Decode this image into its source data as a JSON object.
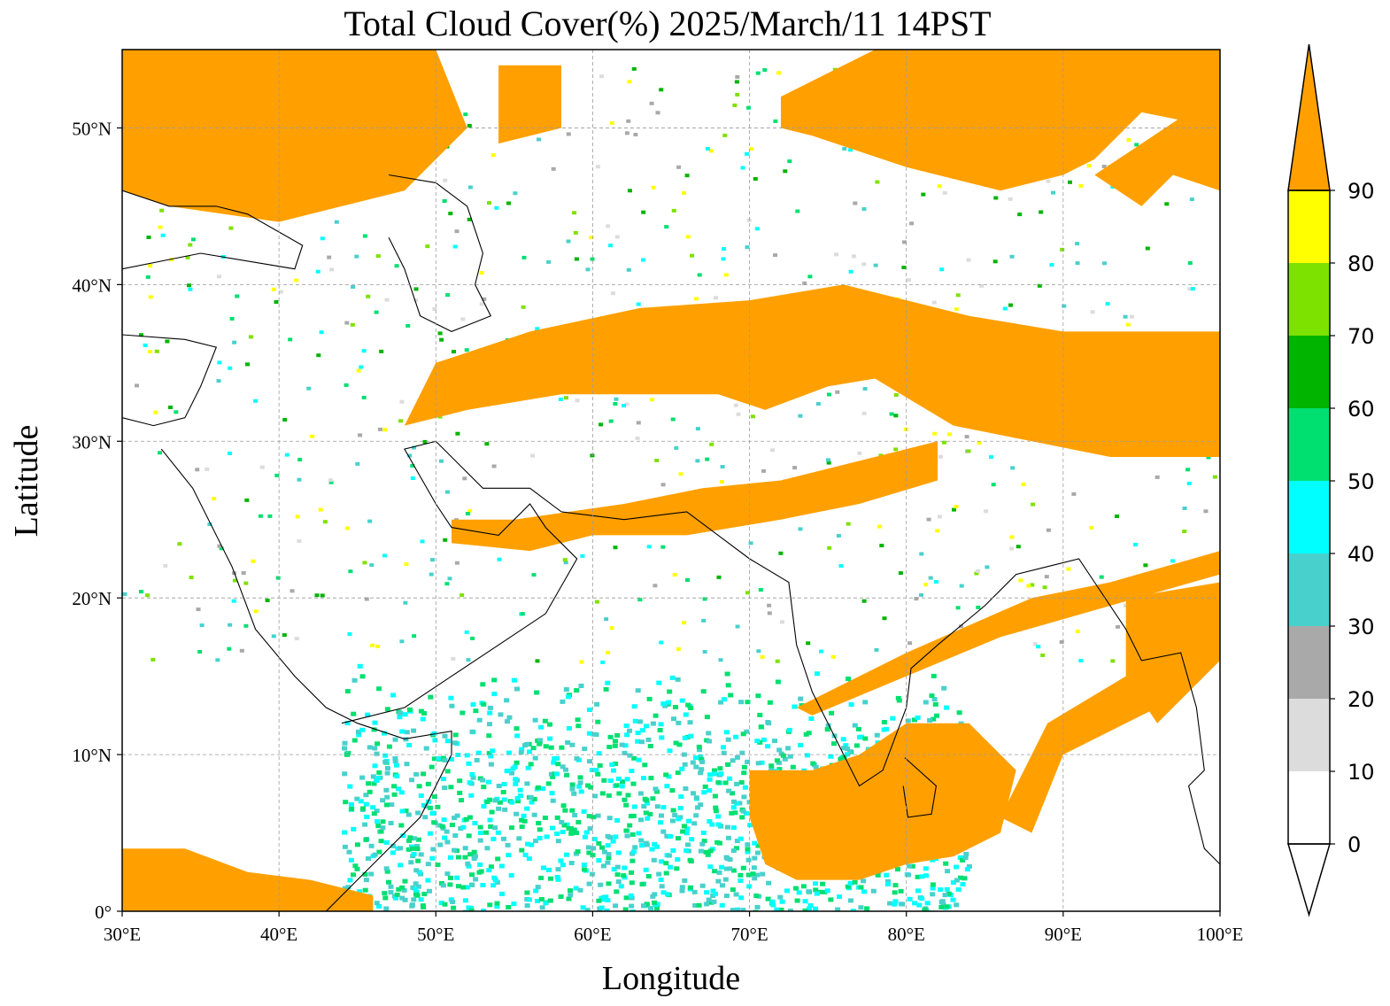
{
  "figure": {
    "title": "Total Cloud Cover(%)  2025/March/11 14PST",
    "xlabel": "Longitude",
    "ylabel": "Latitude"
  },
  "axes": {
    "lon_range": [
      30,
      100
    ],
    "lat_range": [
      0,
      55
    ],
    "x_ticks": [
      {
        "value": 30,
        "label": "30°E"
      },
      {
        "value": 40,
        "label": "40°E"
      },
      {
        "value": 50,
        "label": "50°E"
      },
      {
        "value": 60,
        "label": "60°E"
      },
      {
        "value": 70,
        "label": "70°E"
      },
      {
        "value": 80,
        "label": "80°E"
      },
      {
        "value": 90,
        "label": "90°E"
      },
      {
        "value": 100,
        "label": "100°E"
      }
    ],
    "y_ticks": [
      {
        "value": 0,
        "label": "0°"
      },
      {
        "value": 10,
        "label": "10°N"
      },
      {
        "value": 20,
        "label": "20°N"
      },
      {
        "value": 30,
        "label": "30°N"
      },
      {
        "value": 40,
        "label": "40°N"
      },
      {
        "value": 50,
        "label": "50°N"
      }
    ],
    "gridlines": true
  },
  "colorbar": {
    "ticks": [
      "0",
      "10",
      "20",
      "30",
      "40",
      "50",
      "60",
      "70",
      "80",
      "90"
    ],
    "bins": [
      {
        "range": [
          0,
          10
        ],
        "color": "#ffffff"
      },
      {
        "range": [
          10,
          20
        ],
        "color": "#dcdcdc"
      },
      {
        "range": [
          20,
          30
        ],
        "color": "#a9a9a9"
      },
      {
        "range": [
          30,
          40
        ],
        "color": "#48d1cc"
      },
      {
        "range": [
          40,
          50
        ],
        "color": "#00ffff"
      },
      {
        "range": [
          50,
          60
        ],
        "color": "#00e070"
      },
      {
        "range": [
          60,
          70
        ],
        "color": "#00b400"
      },
      {
        "range": [
          70,
          80
        ],
        "color": "#7ee200"
      },
      {
        "range": [
          80,
          90
        ],
        "color": "#ffff00"
      },
      {
        "range": [
          90,
          100
        ],
        "color": "#ffa000"
      }
    ],
    "extend": "both"
  },
  "colors": {
    "orange": "#ffa000",
    "yellow": "#ffff00",
    "lightgreen": "#7ee200",
    "green": "#00b400",
    "seagreen": "#00e070",
    "cyan": "#00ffff",
    "teal": "#48d1cc",
    "gray": "#a9a9a9",
    "lightgray": "#dcdcdc",
    "white": "#ffffff"
  },
  "chart_data": {
    "type": "heatmap",
    "variable": "Total Cloud Cover(%)",
    "region": {
      "lon": [
        30,
        100
      ],
      "lat": [
        0,
        55
      ]
    },
    "cloud_regions": [
      {
        "name": "north-band-west",
        "cover": 95,
        "polygon": [
          [
            30,
            55
          ],
          [
            50,
            55
          ],
          [
            52,
            50
          ],
          [
            48,
            46
          ],
          [
            40,
            44
          ],
          [
            33,
            45
          ],
          [
            30,
            46
          ]
        ]
      },
      {
        "name": "north-band-kazakh",
        "cover": 95,
        "polygon": [
          [
            54,
            54
          ],
          [
            58,
            54
          ],
          [
            58,
            50
          ],
          [
            54,
            49
          ]
        ]
      },
      {
        "name": "north-band-east",
        "cover": 95,
        "polygon": [
          [
            78,
            55
          ],
          [
            100,
            55
          ],
          [
            100,
            50
          ],
          [
            95,
            51
          ],
          [
            92,
            48
          ],
          [
            90,
            47
          ],
          [
            86,
            46
          ],
          [
            80,
            47.5
          ],
          [
            74,
            49.5
          ],
          [
            72,
            50
          ],
          [
            72,
            52
          ]
        ]
      },
      {
        "name": "northeast-arm",
        "cover": 95,
        "polygon": [
          [
            98,
            51
          ],
          [
            100,
            51
          ],
          [
            100,
            46
          ],
          [
            97,
            47
          ],
          [
            95,
            45
          ],
          [
            92,
            47
          ]
        ]
      },
      {
        "name": "afghan-tibet-band",
        "cover": 95,
        "polygon": [
          [
            50,
            35
          ],
          [
            56,
            37
          ],
          [
            63,
            38.5
          ],
          [
            70,
            39
          ],
          [
            76,
            40
          ],
          [
            84,
            38
          ],
          [
            90,
            37
          ],
          [
            100,
            37
          ],
          [
            100,
            29
          ],
          [
            93,
            29
          ],
          [
            88,
            30
          ],
          [
            83,
            31
          ],
          [
            78,
            34
          ],
          [
            75,
            33.5
          ],
          [
            71,
            32
          ],
          [
            68,
            33
          ],
          [
            64,
            33
          ],
          [
            58,
            33
          ],
          [
            52,
            32
          ],
          [
            48,
            31
          ]
        ]
      },
      {
        "name": "iran-pakistan-band",
        "cover": 95,
        "polygon": [
          [
            51,
            25
          ],
          [
            55,
            25
          ],
          [
            62,
            26
          ],
          [
            67,
            27
          ],
          [
            72,
            27.5
          ],
          [
            78,
            29
          ],
          [
            82,
            30
          ],
          [
            82,
            27.5
          ],
          [
            77,
            26
          ],
          [
            72,
            25
          ],
          [
            66,
            24
          ],
          [
            60,
            24
          ],
          [
            56,
            23
          ],
          [
            51,
            23.5
          ]
        ]
      },
      {
        "name": "india-srilanka-blob",
        "cover": 95,
        "polygon": [
          [
            70,
            9
          ],
          [
            74,
            9
          ],
          [
            77,
            10
          ],
          [
            80,
            12
          ],
          [
            84,
            12
          ],
          [
            87,
            9
          ],
          [
            86,
            5
          ],
          [
            83,
            3.5
          ],
          [
            80,
            3
          ],
          [
            77,
            2
          ],
          [
            73,
            2
          ],
          [
            71,
            3
          ],
          [
            70,
            6
          ]
        ]
      },
      {
        "name": "bay-bengal-streak",
        "cover": 95,
        "polygon": [
          [
            73,
            13
          ],
          [
            80,
            16.5
          ],
          [
            88,
            20
          ],
          [
            93,
            21
          ],
          [
            100,
            23
          ],
          [
            100,
            21.5
          ],
          [
            93,
            19.5
          ],
          [
            86,
            17.5
          ],
          [
            80,
            15
          ],
          [
            74,
            12.5
          ]
        ]
      },
      {
        "name": "east-african-band",
        "cover": 95,
        "polygon": [
          [
            30,
            4
          ],
          [
            34,
            4
          ],
          [
            38,
            2.5
          ],
          [
            42,
            2
          ],
          [
            46,
            1
          ],
          [
            46,
            0
          ],
          [
            30,
            0
          ]
        ]
      },
      {
        "name": "burma-blob",
        "cover": 95,
        "polygon": [
          [
            94,
            20
          ],
          [
            100,
            21
          ],
          [
            100,
            16
          ],
          [
            96,
            12
          ],
          [
            94,
            15
          ]
        ]
      },
      {
        "name": "andaman-streak",
        "cover": 95,
        "polygon": [
          [
            89,
            12
          ],
          [
            94,
            15
          ],
          [
            96,
            13
          ],
          [
            90,
            10
          ],
          [
            88,
            5
          ],
          [
            86,
            6
          ]
        ]
      }
    ],
    "ocean_speckle": {
      "lon": [
        44,
        84
      ],
      "lat": [
        0,
        16
      ],
      "cover_range": [
        30,
        60
      ]
    }
  }
}
